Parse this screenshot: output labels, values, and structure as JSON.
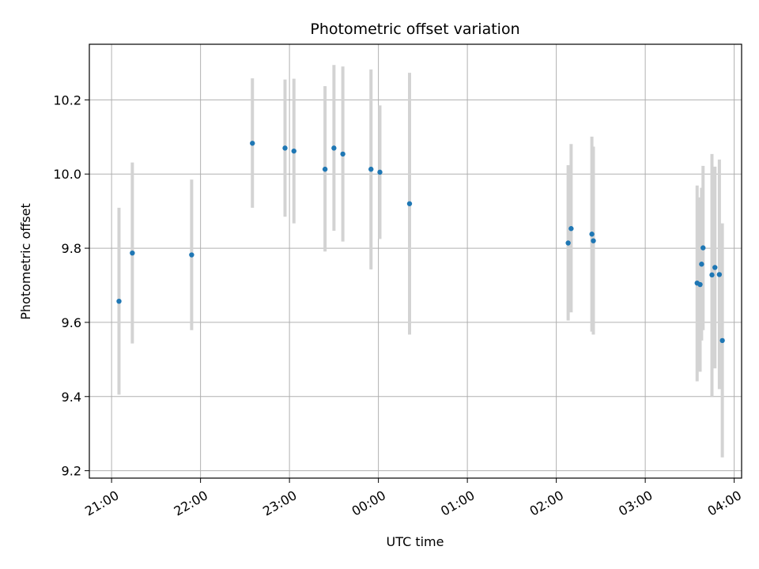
{
  "chart_data": {
    "type": "scatter",
    "title": "Photometric offset variation",
    "xlabel": "UTC time",
    "ylabel": "Photometric offset",
    "x_axis_type": "time",
    "xlim": [
      "20:45",
      "04:05"
    ],
    "ylim": [
      9.18,
      10.35
    ],
    "x_ticks": [
      "21:00",
      "22:00",
      "23:00",
      "00:00",
      "01:00",
      "02:00",
      "03:00",
      "04:00"
    ],
    "y_ticks": [
      "9.2",
      "9.4",
      "9.6",
      "9.8",
      "10.0",
      "10.2"
    ],
    "grid": true,
    "legend": "none",
    "colors": {
      "points": "#1f77b4",
      "errorbars": "#d3d3d3",
      "grid": "#b0b0b0"
    },
    "points": [
      {
        "time": "21:05",
        "y": 9.657,
        "ylow": 9.405,
        "yhigh": 9.909
      },
      {
        "time": "21:14",
        "y": 9.787,
        "ylow": 9.543,
        "yhigh": 10.031
      },
      {
        "time": "21:54",
        "y": 9.782,
        "ylow": 9.579,
        "yhigh": 9.985
      },
      {
        "time": "22:35",
        "y": 10.083,
        "ylow": 9.909,
        "yhigh": 10.258
      },
      {
        "time": "22:57",
        "y": 10.07,
        "ylow": 9.885,
        "yhigh": 10.255
      },
      {
        "time": "23:03",
        "y": 10.062,
        "ylow": 9.867,
        "yhigh": 10.257
      },
      {
        "time": "23:24",
        "y": 10.013,
        "ylow": 9.791,
        "yhigh": 10.237
      },
      {
        "time": "23:30",
        "y": 10.07,
        "ylow": 9.847,
        "yhigh": 10.294
      },
      {
        "time": "23:36",
        "y": 10.054,
        "ylow": 9.818,
        "yhigh": 10.29
      },
      {
        "time": "23:55",
        "y": 10.013,
        "ylow": 9.743,
        "yhigh": 10.282
      },
      {
        "time": "00:01",
        "y": 10.005,
        "ylow": 9.825,
        "yhigh": 10.185
      },
      {
        "time": "00:21",
        "y": 9.92,
        "ylow": 9.567,
        "yhigh": 10.273
      },
      {
        "time": "02:08",
        "y": 9.814,
        "ylow": 9.605,
        "yhigh": 10.024
      },
      {
        "time": "02:10",
        "y": 9.853,
        "ylow": 9.627,
        "yhigh": 10.081
      },
      {
        "time": "02:24",
        "y": 9.838,
        "ylow": 9.575,
        "yhigh": 10.101
      },
      {
        "time": "02:25",
        "y": 9.82,
        "ylow": 9.567,
        "yhigh": 10.074
      },
      {
        "time": "03:35",
        "y": 9.706,
        "ylow": 9.441,
        "yhigh": 9.969
      },
      {
        "time": "03:37",
        "y": 9.702,
        "ylow": 9.467,
        "yhigh": 9.937
      },
      {
        "time": "03:38",
        "y": 9.757,
        "ylow": 9.551,
        "yhigh": 9.963
      },
      {
        "time": "03:39",
        "y": 9.801,
        "ylow": 9.579,
        "yhigh": 10.022
      },
      {
        "time": "03:45",
        "y": 9.728,
        "ylow": 9.4,
        "yhigh": 10.054
      },
      {
        "time": "03:47",
        "y": 9.748,
        "ylow": 9.476,
        "yhigh": 10.02
      },
      {
        "time": "03:50",
        "y": 9.729,
        "ylow": 9.42,
        "yhigh": 10.039
      },
      {
        "time": "03:52",
        "y": 9.551,
        "ylow": 9.236,
        "yhigh": 9.867
      }
    ]
  }
}
